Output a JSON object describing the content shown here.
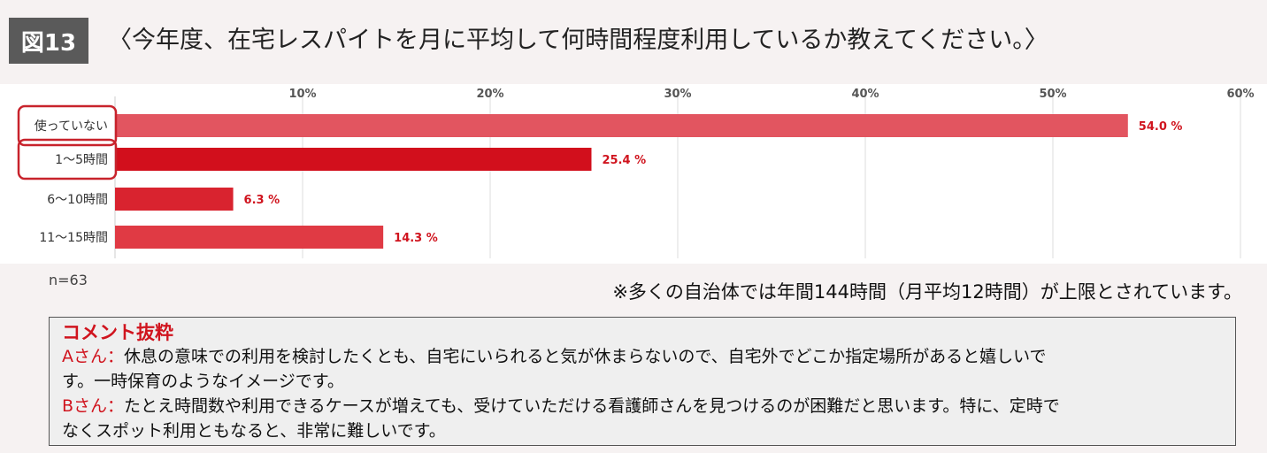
{
  "figure_label": "図13",
  "question": "〈今年度、在宅レスパイトを月に平均して何時間程度利用しているか教えてください。〉",
  "chart_data": {
    "type": "bar",
    "orientation": "horizontal",
    "categories": [
      "使っていない",
      "1～5時間",
      "6～10時間",
      "11～15時間"
    ],
    "values": [
      54.0,
      25.4,
      6.3,
      14.3
    ],
    "value_labels": [
      "54.0 %",
      "25.4 %",
      "6.3 %",
      "14.3 %"
    ],
    "xlim": [
      0,
      60
    ],
    "ticks": [
      "10%",
      "20%",
      "30%",
      "40%",
      "50%",
      "60%"
    ],
    "tick_values": [
      10,
      20,
      30,
      40,
      50,
      60
    ],
    "grid": true,
    "highlighted_categories": [
      0,
      1
    ],
    "colors": {
      "bars": [
        "#e25560",
        "#d20f1c",
        "#d9232f",
        "#e03a44"
      ],
      "highlight_border": "#c8232c",
      "grid": "#dddddd",
      "data_label": "#d0141e"
    }
  },
  "sample_size": "n=63",
  "footnote": "※多くの自治体では年間144時間（月平均12時間）が上限とされています。",
  "comments": {
    "title": "コメント抜粋",
    "a_person": "Aさん：",
    "a_line1": "休息の意味での利用を検討したくとも、自宅にいられると気が休まらないので、自宅外でどこか指定場所があると嬉しいで",
    "a_line2": "す。一時保育のようなイメージです。",
    "b_person": "Bさん：",
    "b_line1": "たとえ時間数や利用できるケースが増えても、受けていただける看護師さんを見つけるのが困難だと思います。特に、定時で",
    "b_line2": "なくスポット利用ともなると、非常に難しいです。"
  }
}
